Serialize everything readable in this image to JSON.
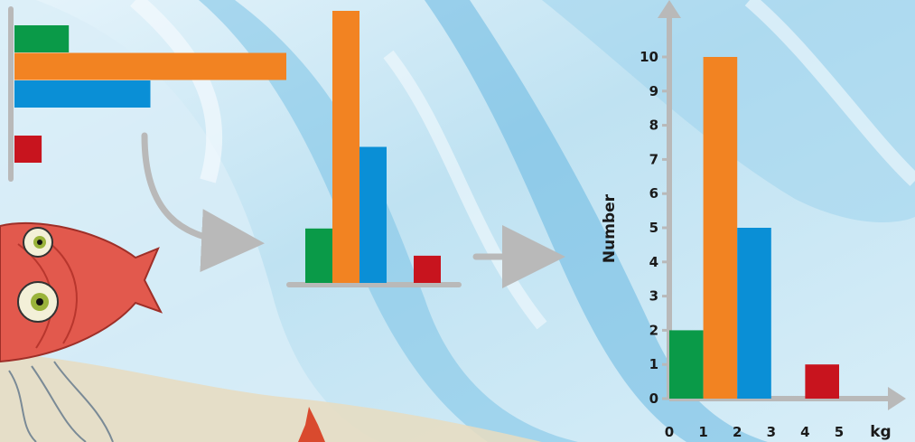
{
  "colors": {
    "green": "#0a9a48",
    "orange": "#f28322",
    "blue": "#0a8fd6",
    "red": "#c8141e",
    "axis": "#b9b9b9"
  },
  "chart_data": [
    {
      "type": "bar",
      "orientation": "horizontal",
      "categories": [
        "green",
        "orange",
        "blue",
        "gap",
        "red"
      ],
      "values": [
        2,
        10,
        5,
        0,
        1
      ],
      "title": "",
      "xlabel": "",
      "ylabel": ""
    },
    {
      "type": "bar",
      "orientation": "vertical",
      "categories": [
        "green",
        "orange",
        "blue",
        "gap",
        "red"
      ],
      "values": [
        2,
        10,
        5,
        0,
        1
      ],
      "title": "",
      "xlabel": "",
      "ylabel": ""
    },
    {
      "type": "bar",
      "orientation": "vertical",
      "x": [
        "0-1",
        "1-2",
        "2-3",
        "3-4",
        "4-5"
      ],
      "values": [
        2,
        10,
        5,
        0,
        1
      ],
      "colors": [
        "#0a9a48",
        "#f28322",
        "#0a8fd6",
        "",
        "#c8141e"
      ],
      "ylabel": "Number",
      "xlabel": "kg",
      "xticks": [
        "0",
        "1",
        "2",
        "3",
        "4",
        "5"
      ],
      "yticks": [
        "0",
        "1",
        "2",
        "3",
        "4",
        "5",
        "6",
        "7",
        "8",
        "9",
        "10"
      ],
      "ylim": [
        0,
        10
      ],
      "xlim": [
        0,
        5
      ],
      "grid": false
    }
  ]
}
